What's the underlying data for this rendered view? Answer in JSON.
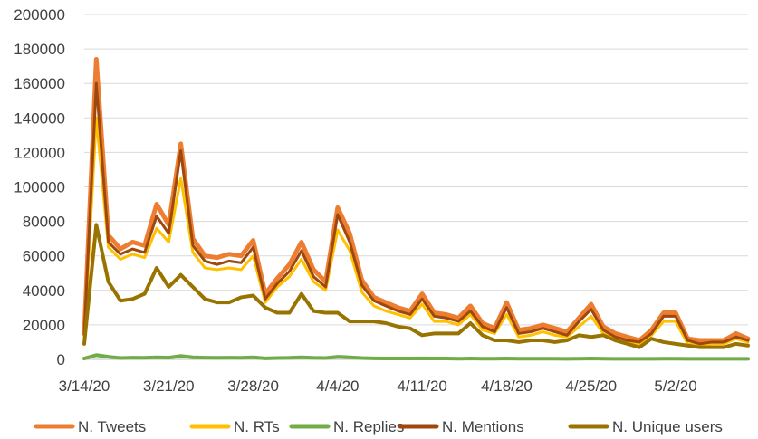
{
  "chart_data": {
    "type": "line",
    "title": "",
    "xlabel": "",
    "ylabel": "",
    "ylim": [
      0,
      200000
    ],
    "yticks": [
      "0",
      "20000",
      "40000",
      "60000",
      "80000",
      "100000",
      "120000",
      "140000",
      "160000",
      "180000",
      "200000"
    ],
    "yticks_values": [
      0,
      20000,
      40000,
      60000,
      80000,
      100000,
      120000,
      140000,
      160000,
      180000,
      200000
    ],
    "xticks": [
      "3/14/20",
      "3/21/20",
      "3/28/20",
      "4/4/20",
      "4/11/20",
      "4/18/20",
      "4/25/20",
      "5/2/20"
    ],
    "xticks_index": [
      0,
      7,
      14,
      21,
      28,
      35,
      42,
      49
    ],
    "x_start": "3/14/20",
    "x_count": 56,
    "grid": true,
    "legend_position": "bottom",
    "series": [
      {
        "name": "N. Tweets",
        "color": "#ed7d31",
        "width": 5,
        "values": [
          15000,
          174000,
          72000,
          64000,
          68000,
          66000,
          90000,
          78000,
          125000,
          70000,
          60000,
          59000,
          61000,
          60000,
          69000,
          38000,
          47000,
          55000,
          68000,
          52000,
          45000,
          88000,
          73000,
          46000,
          36000,
          33000,
          30000,
          28000,
          38000,
          27000,
          26000,
          24000,
          31000,
          21000,
          18000,
          33000,
          17000,
          18000,
          20000,
          18000,
          16000,
          24000,
          32000,
          19000,
          15000,
          13000,
          11000,
          17000,
          27000,
          27000,
          12000,
          11000,
          11000,
          11000,
          15000,
          12000
        ]
      },
      {
        "name": "N. RTs",
        "color": "#ffc000",
        "width": 3,
        "values": [
          12000,
          140000,
          65000,
          58000,
          61000,
          59000,
          76000,
          68000,
          105000,
          62000,
          53000,
          52000,
          53000,
          52000,
          60000,
          33000,
          42000,
          48000,
          58000,
          45000,
          40000,
          75000,
          63000,
          39000,
          31000,
          28000,
          26000,
          24000,
          32000,
          22000,
          22000,
          20000,
          26000,
          17000,
          15000,
          26000,
          13000,
          14000,
          16000,
          14000,
          13000,
          19000,
          25000,
          15000,
          12000,
          10000,
          9000,
          14000,
          22000,
          22000,
          9000,
          8000,
          9000,
          9000,
          12000,
          10000
        ]
      },
      {
        "name": "N. Replies",
        "color": "#70ad47",
        "width": 4,
        "values": [
          500,
          2500,
          1500,
          800,
          1000,
          900,
          1200,
          1000,
          2000,
          1200,
          1000,
          900,
          1000,
          900,
          1200,
          600,
          800,
          900,
          1200,
          900,
          800,
          1500,
          1200,
          800,
          600,
          500,
          500,
          500,
          600,
          500,
          500,
          400,
          500,
          400,
          400,
          500,
          400,
          400,
          400,
          400,
          300,
          400,
          500,
          400,
          300,
          300,
          300,
          300,
          400,
          400,
          300,
          300,
          300,
          300,
          300,
          300
        ]
      },
      {
        "name": "N. Mentions",
        "color": "#9e480e",
        "width": 3,
        "values": [
          14000,
          160000,
          68000,
          61000,
          64000,
          62000,
          83000,
          73000,
          121000,
          66000,
          57000,
          55000,
          57000,
          56000,
          65000,
          35000,
          44000,
          51000,
          63000,
          48000,
          42000,
          84000,
          68000,
          43000,
          34000,
          31000,
          28000,
          26000,
          35000,
          25000,
          24000,
          22000,
          28000,
          19000,
          16000,
          30000,
          15000,
          16000,
          18000,
          16000,
          14000,
          22000,
          29000,
          17000,
          13000,
          11000,
          10000,
          15000,
          25000,
          25000,
          11000,
          9000,
          10000,
          10000,
          13000,
          11000
        ]
      },
      {
        "name": "N. Unique users",
        "color": "#997300",
        "width": 4,
        "values": [
          9000,
          78000,
          45000,
          34000,
          35000,
          38000,
          53000,
          42000,
          49000,
          42000,
          35000,
          33000,
          33000,
          36000,
          37000,
          30000,
          27000,
          27000,
          38000,
          28000,
          27000,
          27000,
          22000,
          22000,
          22000,
          21000,
          19000,
          18000,
          14000,
          15000,
          15000,
          15000,
          21000,
          14000,
          11000,
          11000,
          10000,
          11000,
          11000,
          10000,
          11000,
          14000,
          13000,
          14000,
          11000,
          9000,
          7000,
          12000,
          10000,
          9000,
          8000,
          7000,
          7000,
          7000,
          9000,
          8000
        ]
      }
    ]
  }
}
